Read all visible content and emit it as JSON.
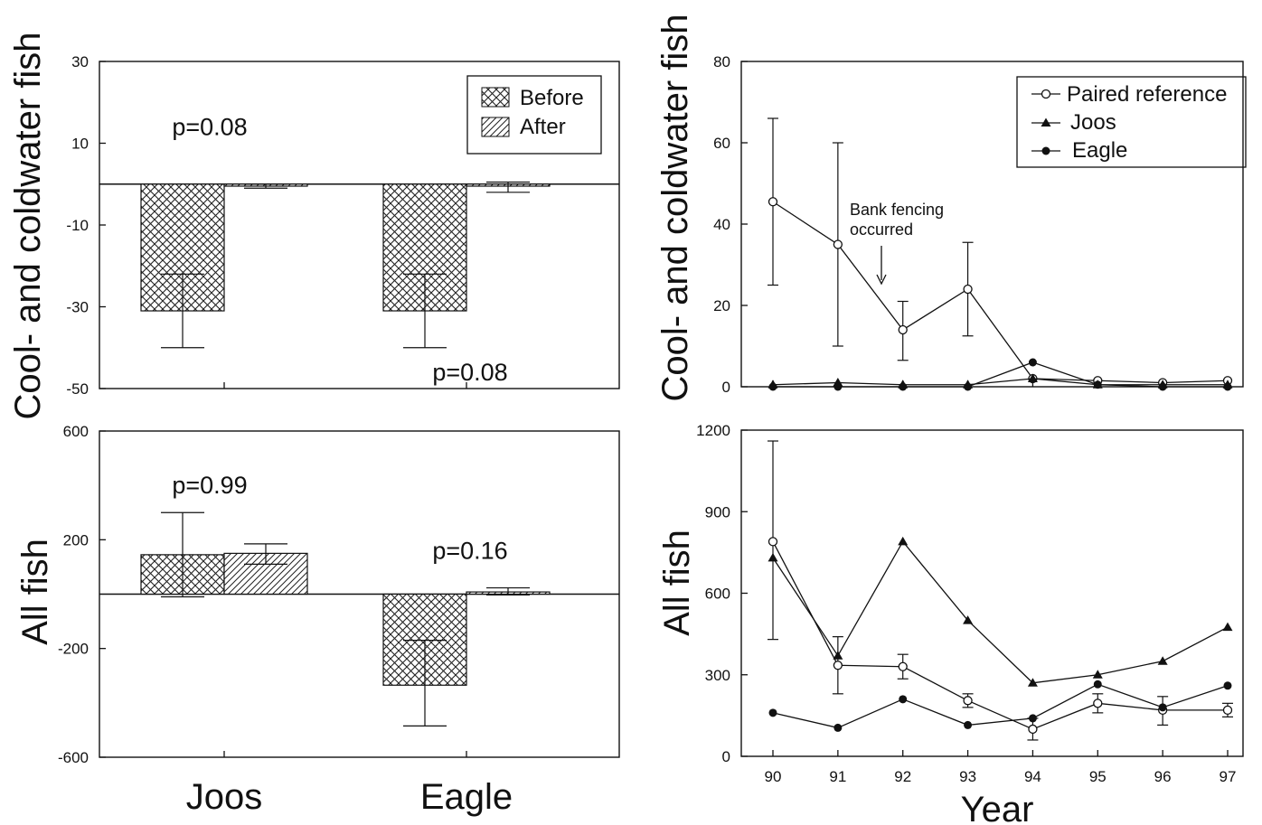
{
  "chart_data": [
    {
      "type": "bar",
      "id": "left-top",
      "ylabel": "Cool- and coldwater fish",
      "ylim": [
        -50,
        30
      ],
      "yticks": [
        30,
        10,
        -10,
        -30,
        -50
      ],
      "categories": [
        "Joos",
        "Eagle"
      ],
      "series": [
        {
          "name": "Before",
          "pattern": "crosshatch",
          "values": [
            -31,
            -31
          ],
          "err_low": [
            -40,
            -40
          ],
          "err_high": [
            -22,
            -22
          ]
        },
        {
          "name": "After",
          "pattern": "diagonal",
          "values": [
            -0.5,
            -0.5
          ],
          "err_low": [
            -1,
            -2
          ],
          "err_high": [
            0,
            0.5
          ]
        }
      ],
      "annotations": [
        {
          "text": "p=0.08",
          "category": "Joos",
          "y": 14
        },
        {
          "text": "p=0.08",
          "category": "Eagle",
          "y": -46
        }
      ],
      "legend": "top-right"
    },
    {
      "type": "bar",
      "id": "left-bottom",
      "ylabel": "All fish",
      "ylim": [
        -600,
        600
      ],
      "yticks": [
        600,
        200,
        -200,
        -600
      ],
      "categories": [
        "Joos",
        "Eagle"
      ],
      "series": [
        {
          "name": "Before",
          "pattern": "crosshatch",
          "values": [
            145,
            -335
          ],
          "err_low": [
            -10,
            -485
          ],
          "err_high": [
            300,
            -170
          ]
        },
        {
          "name": "After",
          "pattern": "diagonal",
          "values": [
            150,
            8
          ],
          "err_low": [
            110,
            -3
          ],
          "err_high": [
            185,
            23
          ]
        }
      ],
      "annotations": [
        {
          "text": "p=0.99",
          "category": "Joos",
          "y": 400
        },
        {
          "text": "p=0.16",
          "category": "Eagle",
          "y": 160
        }
      ]
    },
    {
      "type": "line",
      "id": "right-top",
      "ylabel": "Cool- and coldwater fish",
      "ylim": [
        0,
        80
      ],
      "yticks": [
        0,
        20,
        40,
        60,
        80
      ],
      "x": [
        90,
        91,
        92,
        93,
        94,
        95,
        96,
        97
      ],
      "series": [
        {
          "name": "Paired reference",
          "marker": "open-circle",
          "values": [
            45.5,
            35,
            14,
            24,
            2,
            1.5,
            1,
            1.5
          ],
          "err_low": [
            25,
            10,
            6.5,
            12.5,
            null,
            null,
            null,
            null
          ],
          "err_high": [
            66,
            60,
            21,
            35.5,
            null,
            null,
            null,
            null
          ]
        },
        {
          "name": "Joos",
          "marker": "triangle",
          "values": [
            0.5,
            1,
            0.5,
            0.5,
            2,
            0.5,
            0.5,
            0.5
          ]
        },
        {
          "name": "Eagle",
          "marker": "filled-circle",
          "values": [
            0,
            0,
            0,
            0,
            6,
            0.5,
            0,
            0
          ]
        }
      ],
      "annotation": {
        "text": [
          "Bank fencing",
          "occurred"
        ],
        "x": 91.6,
        "arrow_to_y": 25
      },
      "legend": "top-right"
    },
    {
      "type": "line",
      "id": "right-bottom",
      "ylabel": "All fish",
      "xlabel": "Year",
      "ylim": [
        0,
        1200
      ],
      "yticks": [
        0,
        300,
        600,
        900,
        1200
      ],
      "x": [
        90,
        91,
        92,
        93,
        94,
        95,
        96,
        97
      ],
      "series": [
        {
          "name": "Paired reference",
          "marker": "open-circle",
          "values": [
            790,
            335,
            330,
            205,
            100,
            195,
            170,
            170
          ],
          "err_low": [
            430,
            230,
            285,
            180,
            60,
            160,
            115,
            145
          ],
          "err_high": [
            1160,
            440,
            375,
            230,
            140,
            230,
            220,
            195
          ]
        },
        {
          "name": "Joos",
          "marker": "triangle",
          "values": [
            730,
            370,
            790,
            500,
            270,
            300,
            350,
            475
          ]
        },
        {
          "name": "Eagle",
          "marker": "filled-circle",
          "values": [
            160,
            105,
            210,
            115,
            140,
            265,
            180,
            260
          ]
        }
      ]
    }
  ]
}
